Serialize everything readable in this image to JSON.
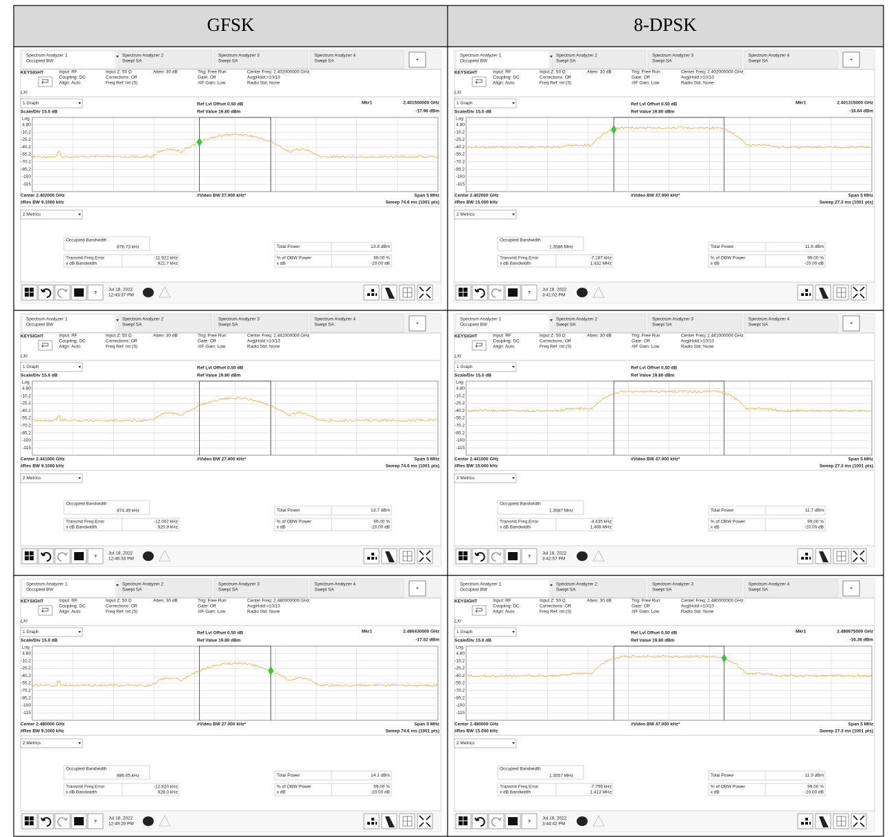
{
  "table": {
    "headers": [
      "GFSK",
      "8-DPSK"
    ],
    "common": {
      "tabs": [
        {
          "title": "Spectrum Analyzer 1",
          "mode": "Occupied BW"
        },
        {
          "title": "Spectrum Analyzer 2",
          "mode": "Swept SA"
        },
        {
          "title": "Spectrum Analyzer 3",
          "mode": "Swept SA"
        },
        {
          "title": "Spectrum Analyzer 4",
          "mode": "Swept SA"
        }
      ],
      "plus": "+",
      "brand": "KEYSIGHT",
      "info": [
        [
          "Input: RF",
          "Coupling: DC",
          "Align: Auto"
        ],
        [
          "Input Z: 50 Ω",
          "Corrections: Off",
          "Freq Ref: Int (S)"
        ],
        [
          "Atten: 30 dB"
        ],
        [
          "Trig: Free Run",
          "Gate: Off",
          "#IF Gain: Low"
        ]
      ],
      "info_extra": [
        "Avg|Hold:>10/10",
        "Radio Std: None"
      ],
      "lxi": "LXI",
      "graph_menu": "1 Graph",
      "scale": "Scale/Div 15.0 dB",
      "ref_offset": "Ref Lvl Offset 0.50 dB",
      "ref_value": "Ref Value 19.80 dBm",
      "log": "Log",
      "y_labels": [
        "4.80",
        "-10.2",
        "-25.2",
        "-40.2",
        "-55.2",
        "-70.2",
        "-85.2",
        "-100",
        "-115"
      ],
      "span": "Span 5 MHz",
      "metrics_menu": "2 Metrics",
      "metric_labels": {
        "obw": "Occupied Bandwidth",
        "freq_error": "Transmit Freq Error",
        "xdb_bw": "x dB Bandwidth",
        "total_power": "Total Power",
        "obw_power": "% of OBW Power",
        "xdb": "x dB"
      },
      "obw_power": "99.00 %",
      "xdb": "-20.00 dB",
      "help": "?",
      "date": "Jul 18, 2022"
    },
    "rows": [
      [
        {
          "center_freq_setting": "Center Freq: 2.402000000 GHz",
          "center": "Center 2.402000 GHz",
          "res_bw": "#Res BW 9.1000 kHz",
          "video_bw": "#Video BW 27.000 kHz*",
          "sweep": "Sweep 74.6 ms (1001 pts)",
          "marker": {
            "label": "Mkr1",
            "freq": "2.401550000 GHz",
            "level": "-17.96 dBm"
          },
          "obw": "876.73 kHz",
          "freq_error": "-11.922 kHz",
          "xdb_bw": "921.7 kHz",
          "total_power": "13.8 dBm",
          "time": "12:43:37 PM"
        },
        {
          "center_freq_setting": "Center Freq: 2.402000000 GHz",
          "center": "Center 2.402000 GHz",
          "res_bw": "#Res BW 15.000 kHz",
          "video_bw": "#Video BW 47.000 kHz*",
          "sweep": "Sweep 27.3 ms (1001 pts)",
          "marker": {
            "label": "Mkr1",
            "freq": "2.401315000 GHz",
            "level": "-16.64 dBm"
          },
          "obw": "1.3586 MHz",
          "freq_error": "-7.187 kHz",
          "xdb_bw": "1.432 MHz",
          "total_power": "11.6 dBm",
          "time": "3:41:02 PM"
        }
      ],
      [
        {
          "center_freq_setting": "Center Freq: 2.441000000 GHz",
          "center": "Center 2.441000 GHz",
          "res_bw": "#Res BW 9.1000 kHz",
          "video_bw": "#Video BW 27.000 kHz*",
          "sweep": "Sweep 74.6 ms (1001 pts)",
          "obw": "874.49 kHz",
          "freq_error": "-12.002 kHz",
          "xdb_bw": "920.9 kHz",
          "total_power": "13.7 dBm",
          "time": "12:46:33 PM"
        },
        {
          "center_freq_setting": "Center Freq: 2.441000000 GHz",
          "center": "Center 2.441000 GHz",
          "res_bw": "#Res BW 15.000 kHz",
          "video_bw": "#Video BW 47.000 kHz*",
          "sweep": "Sweep 27.3 ms (1001 pts)",
          "obw": "1.3587 MHz",
          "freq_error": "-4.435 kHz",
          "xdb_bw": "1.408 MHz",
          "total_power": "11.7 dBm",
          "time": "3:42:57 PM"
        }
      ],
      [
        {
          "center_freq_setting": "Center Freq: 2.480000000 GHz",
          "center": "Center 2.480000 GHz",
          "res_bw": "#Res BW 9.1000 kHz",
          "video_bw": "#Video BW 27.000 kHz*",
          "sweep": "Sweep 74.6 ms (1001 pts)",
          "marker": {
            "label": "Mkr1",
            "freq": "2.480430000 GHz",
            "level": "-17.52 dBm"
          },
          "obw": "886.05 kHz",
          "freq_error": "-12.820 kHz",
          "xdb_bw": "928.0 kHz",
          "total_power": "14.1 dBm",
          "time": "12:49:20 PM"
        },
        {
          "center_freq_setting": "Center Freq: 2.480000000 GHz",
          "center": "Center 2.480000 GHz",
          "res_bw": "#Res BW 15.000 kHz",
          "video_bw": "#Video BW 47.000 kHz*",
          "sweep": "Sweep 27.3 ms (1001 pts)",
          "marker": {
            "label": "Mkr1",
            "freq": "2.480675000 GHz",
            "level": "-16.38 dBm"
          },
          "obw": "1.3557 MHz",
          "freq_error": "-7.759 kHz",
          "xdb_bw": "1.413 MHz",
          "total_power": "11.9 dBm",
          "time": "3:44:42 PM"
        }
      ]
    ]
  }
}
